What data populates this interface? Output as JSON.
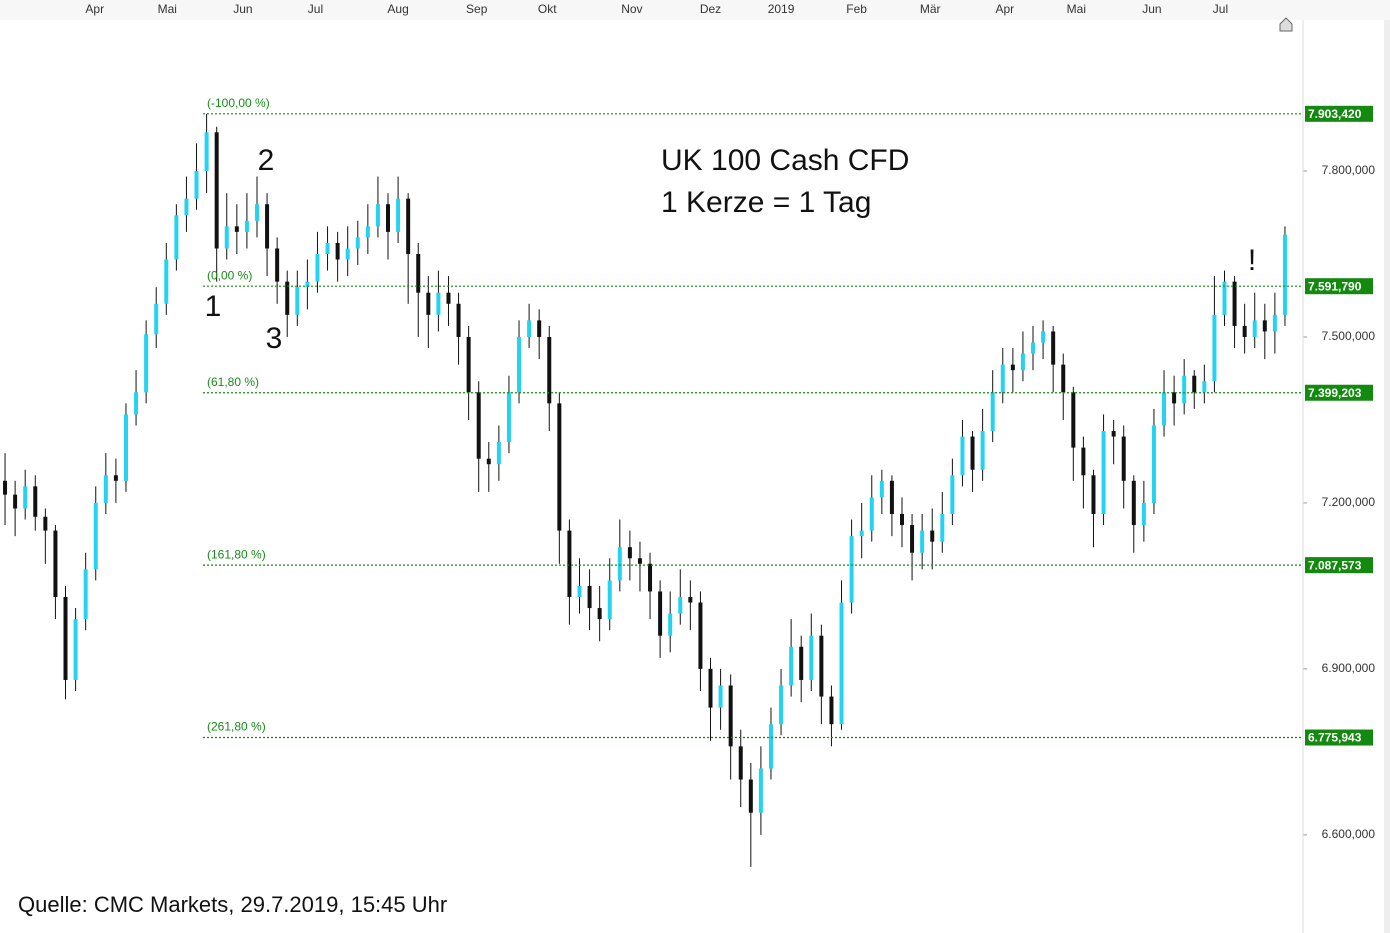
{
  "chart_data": {
    "type": "candlestick",
    "title": "UK 100 Cash CFD",
    "subtitle": "1 Kerze = 1 Tag",
    "source": "Quelle: CMC Markets, 29.7.2019, 15:45 Uhr",
    "annotations": [
      "1",
      "2",
      "3",
      "!"
    ],
    "up_color": "#22d3f2",
    "down_color": "#111111",
    "level_color": "#13890f",
    "xlim": [
      0,
      128
    ],
    "xticks": [
      {
        "value": 9.4,
        "label": "Apr"
      },
      {
        "value": 16.6,
        "label": "Mai"
      },
      {
        "value": 24.1,
        "label": "Jun"
      },
      {
        "value": 31.3,
        "label": "Jul"
      },
      {
        "value": 39.5,
        "label": "Aug"
      },
      {
        "value": 47.3,
        "label": "Sep"
      },
      {
        "value": 54.3,
        "label": "Okt"
      },
      {
        "value": 62.7,
        "label": "Nov"
      },
      {
        "value": 70.5,
        "label": "Dez"
      },
      {
        "value": 77.5,
        "label": "2019"
      },
      {
        "value": 85.0,
        "label": "Feb"
      },
      {
        "value": 92.3,
        "label": "Mär"
      },
      {
        "value": 99.7,
        "label": "Apr"
      },
      {
        "value": 106.8,
        "label": "Mai"
      },
      {
        "value": 114.3,
        "label": "Jun"
      },
      {
        "value": 121.1,
        "label": "Jul"
      }
    ],
    "ylim": [
      6428,
      8073
    ],
    "yticks": [
      {
        "value": 7800,
        "label": "7.800,000"
      },
      {
        "value": 7500,
        "label": "7.500,000"
      },
      {
        "value": 7200,
        "label": "7.200,000"
      },
      {
        "value": 6900,
        "label": "6.900,000"
      },
      {
        "value": 6600,
        "label": "6.600,000"
      }
    ],
    "levels": [
      {
        "name": "(-100,00 %)",
        "value": 7903.42,
        "label": "7.903,420"
      },
      {
        "name": "(0,00 %)",
        "value": 7591.79,
        "label": "7.591,790"
      },
      {
        "name": "(61,80 %)",
        "value": 7399.203,
        "label": "7.399,203"
      },
      {
        "name": "(161,80 %)",
        "value": 7087.573,
        "label": "7.087,573"
      },
      {
        "name": "(261,80 %)",
        "value": 6775.943,
        "label": "6.775,943"
      }
    ],
    "open": [
      7240,
      7215,
      7190,
      7230,
      7175,
      7150,
      7030,
      6880,
      6990,
      7080,
      7200,
      7250,
      7240,
      7360,
      7400,
      7505,
      7560,
      7640,
      7720,
      7750,
      7800,
      7870,
      7660,
      7700,
      7690,
      7710,
      7740,
      7660,
      7600,
      7540,
      7590,
      7600,
      7650,
      7670,
      7640,
      7660,
      7680,
      7700,
      7740,
      7690,
      7750,
      7650,
      7580,
      7540,
      7580,
      7560,
      7500,
      7400,
      7280,
      7270,
      7310,
      7400,
      7500,
      7530,
      7500,
      7380,
      7150,
      7030,
      7050,
      7010,
      6990,
      7060,
      7120,
      7100,
      7090,
      7040,
      6960,
      7000,
      7030,
      7020,
      6900,
      6830,
      6870,
      6760,
      6700,
      6640,
      6720,
      6800,
      6870,
      6940,
      6880,
      6960,
      6850,
      6800,
      7020,
      7140,
      7150,
      7210,
      7240,
      7180,
      7160,
      7110,
      7150,
      7130,
      7180,
      7250,
      7320,
      7260,
      7330,
      7400,
      7450,
      7440,
      7470,
      7490,
      7510,
      7450,
      7400,
      7300,
      7250,
      7180,
      7330,
      7320,
      7240,
      7160,
      7200,
      7340,
      7400,
      7380,
      7430,
      7400,
      7420,
      7540,
      7600,
      7520,
      7500,
      7530,
      7510,
      7540
    ],
    "high": [
      7290,
      7240,
      7260,
      7250,
      7190,
      7160,
      7050,
      7010,
      7110,
      7230,
      7290,
      7280,
      7380,
      7440,
      7530,
      7590,
      7670,
      7740,
      7790,
      7850,
      7903,
      7880,
      7760,
      7740,
      7760,
      7790,
      7760,
      7680,
      7620,
      7620,
      7640,
      7690,
      7700,
      7690,
      7700,
      7710,
      7740,
      7790,
      7760,
      7790,
      7760,
      7670,
      7610,
      7620,
      7610,
      7580,
      7520,
      7420,
      7310,
      7340,
      7430,
      7530,
      7560,
      7550,
      7520,
      7400,
      7170,
      7100,
      7080,
      7050,
      7100,
      7170,
      7150,
      7130,
      7110,
      7060,
      7040,
      7080,
      7060,
      7040,
      6920,
      6900,
      6890,
      6790,
      6730,
      6760,
      6830,
      6900,
      6990,
      6960,
      7000,
      6980,
      6870,
      7060,
      7170,
      7200,
      7250,
      7260,
      7250,
      7210,
      7180,
      7180,
      7190,
      7220,
      7280,
      7350,
      7330,
      7370,
      7440,
      7480,
      7480,
      7510,
      7520,
      7530,
      7520,
      7470,
      7410,
      7320,
      7260,
      7360,
      7350,
      7340,
      7250,
      7240,
      7370,
      7440,
      7430,
      7460,
      7440,
      7450,
      7610,
      7620,
      7610,
      7560,
      7580,
      7560,
      7580,
      7700
    ],
    "low": [
      7160,
      7140,
      7170,
      7150,
      7090,
      6990,
      6845,
      6860,
      6970,
      7060,
      7180,
      7200,
      7220,
      7340,
      7380,
      7480,
      7540,
      7620,
      7690,
      7730,
      7760,
      7600,
      7640,
      7650,
      7660,
      7680,
      7610,
      7560,
      7500,
      7520,
      7550,
      7580,
      7620,
      7600,
      7610,
      7630,
      7650,
      7680,
      7640,
      7670,
      7560,
      7500,
      7480,
      7510,
      7520,
      7450,
      7350,
      7220,
      7220,
      7240,
      7290,
      7380,
      7480,
      7460,
      7330,
      7090,
      6980,
      7000,
      6970,
      6950,
      6970,
      7040,
      7060,
      7040,
      6990,
      6920,
      6930,
      6980,
      6970,
      6860,
      6770,
      6790,
      6700,
      6650,
      6542,
      6600,
      6700,
      6780,
      6850,
      6840,
      6860,
      6800,
      6760,
      6790,
      7000,
      7100,
      7130,
      7180,
      7140,
      7120,
      7060,
      7080,
      7080,
      7110,
      7160,
      7230,
      7220,
      7240,
      7310,
      7380,
      7400,
      7420,
      7440,
      7460,
      7400,
      7350,
      7240,
      7190,
      7120,
      7160,
      7270,
      7190,
      7110,
      7130,
      7180,
      7320,
      7340,
      7360,
      7370,
      7380,
      7400,
      7520,
      7480,
      7470,
      7480,
      7460,
      7470,
      7520
    ],
    "close": [
      7215,
      7190,
      7230,
      7175,
      7150,
      7030,
      6880,
      6990,
      7080,
      7200,
      7250,
      7240,
      7360,
      7400,
      7505,
      7560,
      7640,
      7720,
      7750,
      7800,
      7870,
      7660,
      7700,
      7690,
      7710,
      7740,
      7660,
      7600,
      7540,
      7590,
      7600,
      7650,
      7670,
      7640,
      7660,
      7680,
      7700,
      7740,
      7690,
      7750,
      7650,
      7580,
      7540,
      7580,
      7560,
      7500,
      7400,
      7280,
      7270,
      7310,
      7400,
      7500,
      7530,
      7500,
      7380,
      7150,
      7030,
      7050,
      7010,
      6990,
      7060,
      7120,
      7100,
      7090,
      7040,
      6960,
      7000,
      7030,
      7020,
      6900,
      6830,
      6870,
      6760,
      6700,
      6640,
      6720,
      6800,
      6870,
      6940,
      6880,
      6960,
      6850,
      6800,
      7020,
      7140,
      7150,
      7210,
      7240,
      7180,
      7160,
      7110,
      7150,
      7130,
      7180,
      7250,
      7320,
      7260,
      7330,
      7400,
      7450,
      7440,
      7470,
      7490,
      7510,
      7450,
      7400,
      7300,
      7250,
      7180,
      7330,
      7320,
      7240,
      7160,
      7200,
      7340,
      7400,
      7380,
      7430,
      7400,
      7420,
      7540,
      7600,
      7520,
      7500,
      7530,
      7510,
      7540,
      7685
    ]
  }
}
